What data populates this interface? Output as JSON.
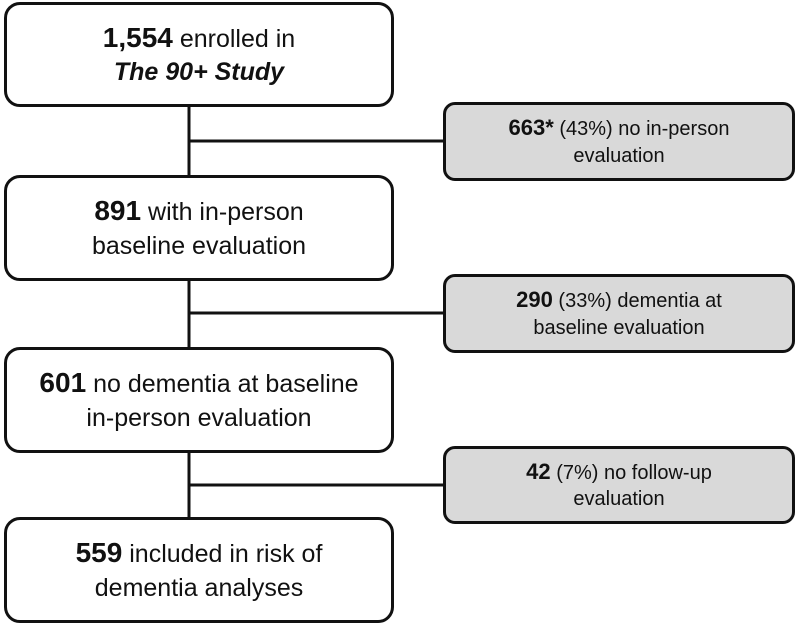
{
  "diagram": {
    "boxes": {
      "enrolled": {
        "count": "1,554",
        "text_line1": "enrolled in",
        "study_name": "The 90+ Study"
      },
      "in_person": {
        "count": "891",
        "text_line1": "with in-person",
        "text_line2": "baseline evaluation"
      },
      "no_dementia": {
        "count": "601",
        "text_line1": "no dementia at baseline",
        "text_line2": "in-person evaluation"
      },
      "included": {
        "count": "559",
        "text_line1": "included in risk of",
        "text_line2": "dementia analyses"
      }
    },
    "exclusions": {
      "no_in_person": {
        "count": "663*",
        "percent": "(43%)",
        "text_line1": "no in-person",
        "text_line2": "evaluation"
      },
      "dementia_baseline": {
        "count": "290",
        "percent": "(33%)",
        "text_line1": "dementia at",
        "text_line2": "baseline evaluation"
      },
      "no_follow_up": {
        "count": "42",
        "percent": "(7%)",
        "text_line1": "no follow-up",
        "text_line2": "evaluation"
      }
    }
  },
  "colors": {
    "main_box_fill": "#ffffff",
    "exclusion_box_fill": "#d9d9d9",
    "stroke": "#111111"
  }
}
